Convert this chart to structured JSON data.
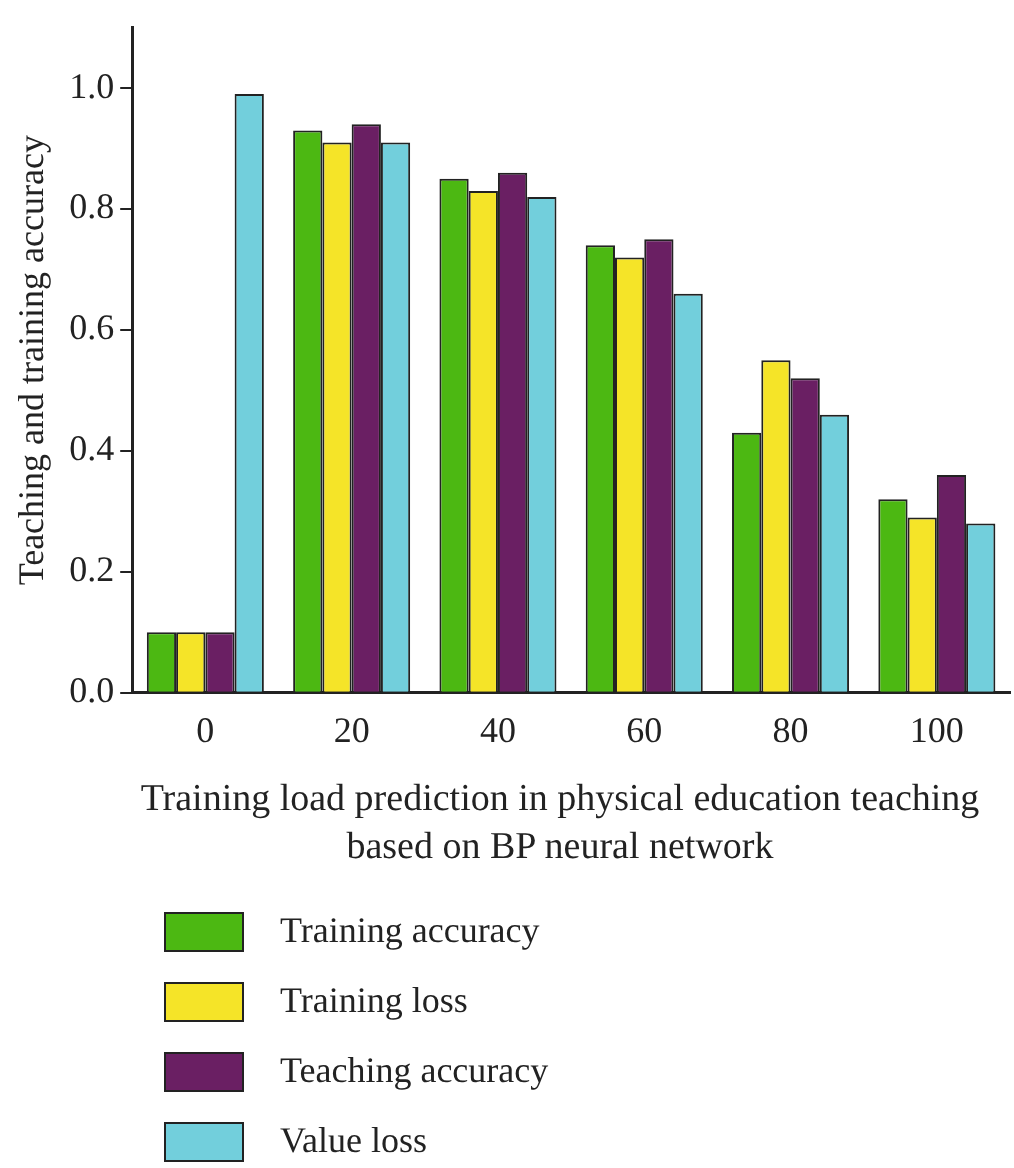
{
  "chart_data": {
    "type": "bar",
    "xlabel": "Training load prediction in physical education teaching based on BP neural network",
    "ylabel": "Teaching and training accuracy",
    "categories": [
      "0",
      "20",
      "40",
      "60",
      "80",
      "100"
    ],
    "series": [
      {
        "name": "Training accuracy",
        "color": "#4cb812",
        "values": [
          0.1,
          0.93,
          0.85,
          0.74,
          0.43,
          0.32
        ]
      },
      {
        "name": "Training loss",
        "color": "#f5e428",
        "values": [
          0.1,
          0.91,
          0.83,
          0.72,
          0.55,
          0.29
        ]
      },
      {
        "name": "Teaching accuracy",
        "color": "#6a1f63",
        "values": [
          0.1,
          0.94,
          0.86,
          0.75,
          0.52,
          0.36
        ]
      },
      {
        "name": "Value loss",
        "color": "#72cfdc",
        "values": [
          0.99,
          0.91,
          0.82,
          0.66,
          0.46,
          0.28
        ]
      }
    ],
    "ylim": [
      0,
      1.1
    ],
    "yticks": [
      {
        "value": 0,
        "label": "0.0"
      },
      {
        "value": 0.2,
        "label": "0.2"
      },
      {
        "value": 0.4,
        "label": "0.4"
      },
      {
        "value": 0.6,
        "label": "0.6"
      },
      {
        "value": 0.8,
        "label": "0.8"
      },
      {
        "value": 1,
        "label": "1.0"
      }
    ],
    "grid": false,
    "legend": "bottom"
  }
}
